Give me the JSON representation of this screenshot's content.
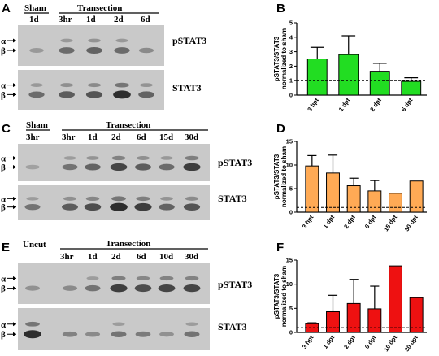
{
  "panels": {
    "A": {
      "letter": "A",
      "headers": [
        {
          "text": "Sham",
          "lanes": [
            "1d"
          ]
        },
        {
          "text": "Transection",
          "lanes": [
            "3hr",
            "1d",
            "2d",
            "6d"
          ]
        }
      ],
      "blots": [
        {
          "label": "pSTAT3",
          "bands": [
            0.25,
            0.55,
            0.6,
            0.55,
            0.35
          ]
        },
        {
          "label": "STAT3",
          "bands": [
            0.55,
            0.65,
            0.7,
            0.95,
            0.6
          ]
        }
      ]
    },
    "C": {
      "letter": "C",
      "headers": [
        {
          "text": "Sham",
          "lanes": [
            "3hr"
          ]
        },
        {
          "text": "Transection",
          "lanes": [
            "3hr",
            "1d",
            "2d",
            "6d",
            "15d",
            "30d"
          ]
        }
      ],
      "blots": [
        {
          "label": "pSTAT3",
          "bands": [
            0.2,
            0.5,
            0.6,
            0.8,
            0.65,
            0.55,
            0.85
          ]
        },
        {
          "label": "STAT3",
          "bands": [
            0.5,
            0.65,
            0.75,
            0.95,
            0.85,
            0.6,
            0.7
          ]
        }
      ]
    },
    "E": {
      "letter": "E",
      "headers": [
        {
          "text": "Uncut",
          "lanes": [
            ""
          ]
        },
        {
          "text": "Transection",
          "lanes": [
            "3hr",
            "1d",
            "2d",
            "6d",
            "10d",
            "30d"
          ]
        }
      ],
      "blots": [
        {
          "label": "pSTAT3",
          "bands": [
            0.3,
            0.35,
            0.5,
            0.85,
            0.75,
            0.8,
            0.8
          ]
        },
        {
          "label": "STAT3",
          "bands": [
            0.95,
            0.4,
            0.35,
            0.5,
            0.45,
            0.3,
            0.5
          ]
        }
      ]
    }
  },
  "arrow_labels": [
    "α",
    "β"
  ],
  "chart_data": [
    {
      "panel": "B",
      "type": "bar",
      "color": "#22dd22",
      "ylabel": [
        "pSTAT3/STAT3",
        "normalized to sham"
      ],
      "categories": [
        "3 hpt",
        "1 dpt",
        "2 dpt",
        "6 dpt"
      ],
      "values": [
        2.5,
        2.8,
        1.65,
        0.95
      ],
      "errors": [
        0.8,
        1.3,
        0.55,
        0.25
      ],
      "ylim": [
        0,
        5
      ],
      "yticks": [
        0,
        1,
        2,
        3,
        4,
        5
      ],
      "reference_line": 1
    },
    {
      "panel": "D",
      "type": "bar",
      "color": "#ffaa55",
      "ylabel": [
        "pSTAT3/STAT3",
        "normalized to sham"
      ],
      "categories": [
        "3 hpt",
        "1 dpt",
        "2 dpt",
        "6 dpt",
        "15 dpt",
        "30 dpt"
      ],
      "values": [
        9.8,
        8.3,
        5.6,
        4.5,
        4.0,
        6.6
      ],
      "errors": [
        2.2,
        3.8,
        1.6,
        2.2,
        0,
        0
      ],
      "ylim": [
        0,
        15
      ],
      "yticks": [
        0,
        5,
        10,
        15
      ],
      "reference_line": 1
    },
    {
      "panel": "F",
      "type": "bar",
      "color": "#ee1111",
      "ylabel": [
        "pSTAT3/STAT3",
        "normalized to sham"
      ],
      "categories": [
        "3 hpt",
        "1 dpt",
        "2 dpt",
        "6 dpt",
        "10 dpt",
        "30 dpt"
      ],
      "values": [
        1.8,
        4.3,
        6.0,
        4.9,
        13.8,
        7.2
      ],
      "errors": [
        0.2,
        3.4,
        5.0,
        4.7,
        0,
        0
      ],
      "ylim": [
        0,
        15
      ],
      "yticks": [
        0,
        5,
        10,
        15
      ],
      "reference_line": 1
    }
  ]
}
